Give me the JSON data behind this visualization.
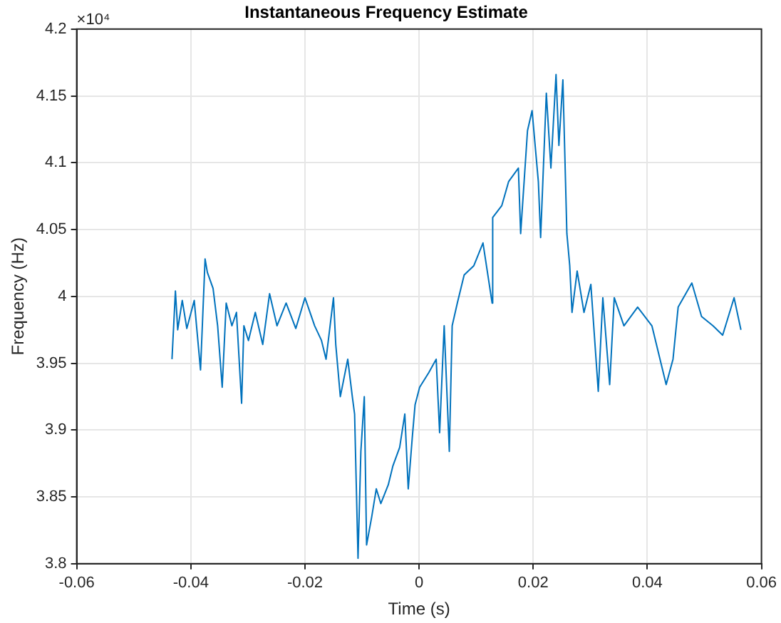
{
  "chart_data": {
    "type": "line",
    "title": "Instantaneous Frequency Estimate",
    "xlabel": "Time (s)",
    "ylabel": "Frequency (Hz)",
    "annotations": [
      "×10⁴"
    ],
    "xlim": [
      -0.06,
      0.06
    ],
    "xticks": [
      -0.06,
      -0.04,
      -0.02,
      0,
      0.02,
      0.04,
      0.06
    ],
    "ylim": [
      3.8,
      4.2
    ],
    "yticks": [
      3.8,
      3.85,
      3.9,
      3.95,
      4,
      4.05,
      4.1,
      4.15,
      4.2
    ],
    "grid": true,
    "marker": "none",
    "line_style": "solid",
    "series": [
      {
        "color": "#0072bd",
        "x": [
          -0.0433,
          -0.0427,
          -0.0423,
          -0.0415,
          -0.0407,
          -0.0394,
          -0.039,
          -0.0383,
          -0.0375,
          -0.0371,
          -0.0361,
          -0.0353,
          -0.0345,
          -0.0338,
          -0.0328,
          -0.032,
          -0.0311,
          -0.0307,
          -0.0299,
          -0.0287,
          -0.0274,
          -0.0262,
          -0.0249,
          -0.0233,
          -0.0216,
          -0.02,
          -0.0183,
          -0.0171,
          -0.0163,
          -0.015,
          -0.0146,
          -0.0138,
          -0.0125,
          -0.0117,
          -0.0113,
          -0.0107,
          -0.0102,
          -0.0096,
          -0.0092,
          -0.0083,
          -0.0075,
          -0.0067,
          -0.0054,
          -0.0046,
          -0.0034,
          -0.0025,
          -0.0019,
          -0.0012,
          -0.0007,
          0.0001,
          0.0017,
          0.003,
          0.0036,
          0.0044,
          0.0053,
          0.0058,
          0.0067,
          0.0079,
          0.0096,
          0.0112,
          0.0128,
          0.0129,
          0.0145,
          0.0157,
          0.0174,
          0.0178,
          0.019,
          0.0198,
          0.0209,
          0.0213,
          0.0223,
          0.0231,
          0.024,
          0.0245,
          0.0252,
          0.0259,
          0.0264,
          0.0268,
          0.0277,
          0.0289,
          0.0301,
          0.0314,
          0.0322,
          0.0334,
          0.0342,
          0.0359,
          0.0383,
          0.0408,
          0.0433,
          0.0445,
          0.0454,
          0.0478,
          0.0495,
          0.0515,
          0.0532,
          0.0552,
          0.0564
        ],
        "values": [
          3.953,
          4.004,
          3.975,
          3.997,
          3.976,
          3.997,
          3.978,
          3.945,
          4.028,
          4.018,
          4.006,
          3.978,
          3.932,
          3.995,
          3.978,
          3.988,
          3.92,
          3.978,
          3.967,
          3.988,
          3.964,
          4.002,
          3.978,
          3.995,
          3.976,
          3.999,
          3.978,
          3.967,
          3.953,
          3.999,
          3.964,
          3.925,
          3.953,
          3.925,
          3.912,
          3.804,
          3.884,
          3.925,
          3.814,
          3.835,
          3.856,
          3.845,
          3.859,
          3.873,
          3.887,
          3.912,
          3.856,
          3.894,
          3.919,
          3.932,
          3.943,
          3.953,
          3.898,
          3.978,
          3.884,
          3.978,
          3.995,
          4.016,
          4.023,
          4.04,
          3.995,
          4.059,
          4.068,
          4.086,
          4.096,
          4.047,
          4.124,
          4.139,
          4.086,
          4.044,
          4.152,
          4.096,
          4.166,
          4.113,
          4.162,
          4.047,
          4.023,
          3.988,
          4.019,
          3.988,
          4.009,
          3.929,
          3.999,
          3.934,
          3.999,
          3.978,
          3.992,
          3.978,
          3.934,
          3.953,
          3.992,
          4.01,
          3.985,
          3.978,
          3.971,
          3.999,
          3.975
        ]
      }
    ]
  }
}
